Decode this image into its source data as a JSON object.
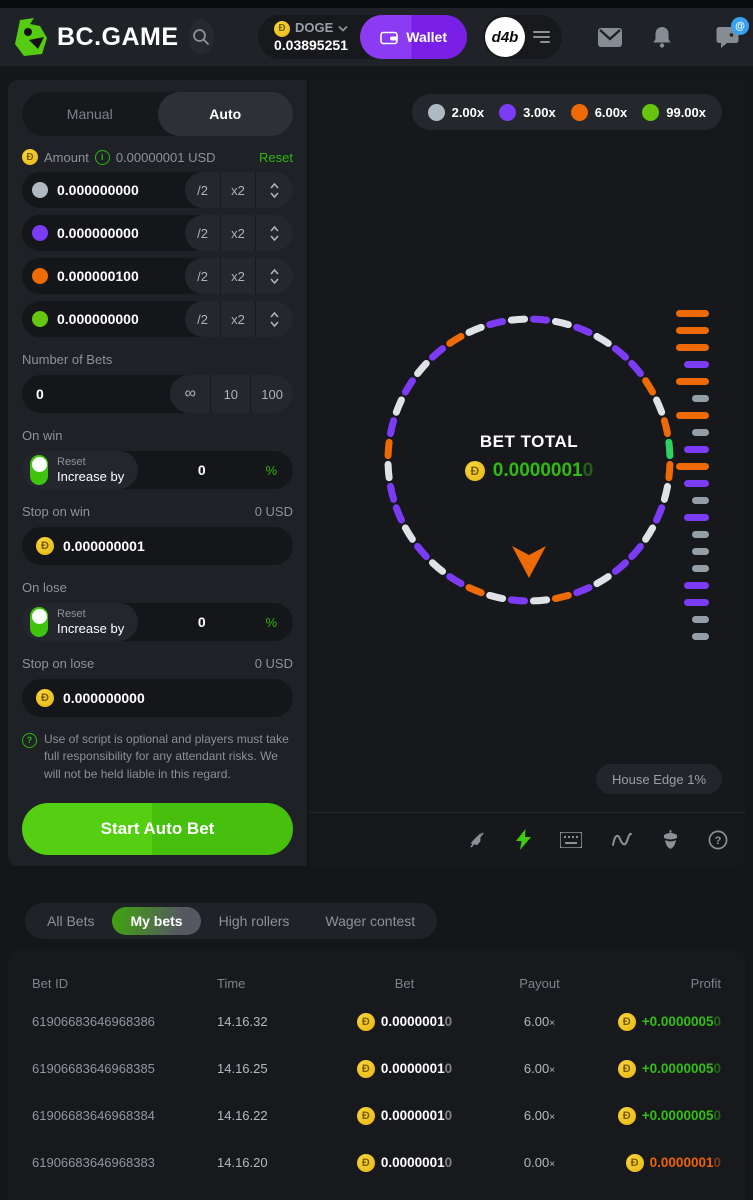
{
  "header": {
    "brand": "BC.GAME",
    "currency": {
      "code": "DOGE",
      "balance": "0.03895251"
    },
    "wallet_label": "Wallet",
    "avatar_text": "d4b",
    "chat_badge": "@"
  },
  "bet_panel": {
    "tabs": {
      "manual": "Manual",
      "auto": "Auto"
    },
    "amount": {
      "label": "Amount",
      "value": "0.00000001 USD",
      "reset_label": "Reset"
    },
    "controls": {
      "divide": "/2",
      "multiply": "x2"
    },
    "bet_rows": [
      {
        "name": "2x",
        "color": "#aeb9c1",
        "value": "0.000000000"
      },
      {
        "name": "3x",
        "color": "#7c3bf5",
        "value": "0.000000000"
      },
      {
        "name": "6x",
        "color": "#ed6a05",
        "value": "0.000000100"
      },
      {
        "name": "99x",
        "color": "#66c60f",
        "value": "0.000000000"
      }
    ],
    "number_of_bets": {
      "label": "Number of Bets",
      "value": "0",
      "presets": [
        "∞",
        "10",
        "100"
      ]
    },
    "on_win": {
      "label": "On win",
      "toggle_top": "Reset",
      "toggle_bottom": "Increase by",
      "value": "0",
      "unit": "%"
    },
    "stop_on_win": {
      "label": "Stop on win",
      "converted": "0 USD",
      "value": "0.000000001"
    },
    "on_lose": {
      "label": "On lose",
      "toggle_top": "Reset",
      "toggle_bottom": "Increase by",
      "value": "0",
      "unit": "%"
    },
    "stop_on_lose": {
      "label": "Stop on lose",
      "converted": "0 USD",
      "value": "0.000000000"
    },
    "disclaimer": "Use of script is optional and players must take full responsibility for any attendant risks. We will not be held liable in this regard.",
    "start_button_label": "Start Auto Bet"
  },
  "game": {
    "legend": [
      {
        "label": "2.00x",
        "color": "#aeb9c1"
      },
      {
        "label": "3.00x",
        "color": "#7c3bf5"
      },
      {
        "label": "6.00x",
        "color": "#ed6a05"
      },
      {
        "label": "99.00x",
        "color": "#66c60f"
      }
    ],
    "bet_total": {
      "label": "BET TOTAL",
      "value_main": "0.0000001",
      "value_dim": "0"
    },
    "house_edge_label": "House Edge 1%",
    "accent_colors": {
      "green": "#31b50f",
      "purple": "#7a1fe6",
      "orange": "#ed6a05",
      "coin_yellow": "#f2c21c"
    },
    "wheel_segments": [
      "#7c3bf5",
      "#dfe3e7",
      "#7c3bf5",
      "#dfe3e7",
      "#7c3bf5",
      "#7c3bf5",
      "#ed6a05",
      "#dfe3e7",
      "#ed6a05",
      "#2fd163",
      "#ed6a05",
      "#dfe3e7",
      "#7c3bf5",
      "#dfe3e7",
      "#7c3bf5",
      "#7c3bf5",
      "#dfe3e7",
      "#7c3bf5",
      "#ed6a05",
      "#dfe3e7",
      "#7c3bf5",
      "#dfe3e7",
      "#ed6a05",
      "#7c3bf5",
      "#dfe3e7",
      "#7c3bf5",
      "#dfe3e7",
      "#7c3bf5",
      "#7c3bf5",
      "#dfe3e7",
      "#ed6a05",
      "#7c3bf5",
      "#dfe3e7",
      "#7c3bf5",
      "#dfe3e7",
      "#7c3bf5",
      "#ed6a05",
      "#dfe3e7",
      "#7c3bf5",
      "#dfe3e7"
    ],
    "history": [
      "orange",
      "orange",
      "orange",
      "purple",
      "orange",
      "gray",
      "orange",
      "gray",
      "purple",
      "orange",
      "purple",
      "gray",
      "purple",
      "gray",
      "gray",
      "gray",
      "purple",
      "purple",
      "gray",
      "gray"
    ],
    "history_styles": {
      "orange": {
        "color": "#ed6a05",
        "width": 33
      },
      "purple": {
        "color": "#7c3bf5",
        "width": 25
      },
      "gray": {
        "color": "#939ea7",
        "width": 17
      }
    }
  },
  "bets_nav": {
    "tabs": [
      "All Bets",
      "My bets",
      "High rollers",
      "Wager contest"
    ],
    "active": "My bets"
  },
  "table": {
    "headers": [
      "Bet ID",
      "Time",
      "Bet",
      "Payout",
      "Profit"
    ],
    "rows": [
      {
        "id": "61906683646968386",
        "time": "14.16.32",
        "bet_main": "0.0000001",
        "bet_dim": "0",
        "payout": "6.00",
        "payout_x": "×",
        "profit_main": "+0.0000005",
        "profit_dim": "0",
        "profit_color": "#33bf12"
      },
      {
        "id": "61906683646968385",
        "time": "14.16.25",
        "bet_main": "0.0000001",
        "bet_dim": "0",
        "payout": "6.00",
        "payout_x": "×",
        "profit_main": "+0.0000005",
        "profit_dim": "0",
        "profit_color": "#33bf12"
      },
      {
        "id": "61906683646968384",
        "time": "14.16.22",
        "bet_main": "0.0000001",
        "bet_dim": "0",
        "payout": "6.00",
        "payout_x": "×",
        "profit_main": "+0.0000005",
        "profit_dim": "0",
        "profit_color": "#33bf12"
      },
      {
        "id": "61906683646968383",
        "time": "14.16.20",
        "bet_main": "0.0000001",
        "bet_dim": "0",
        "payout": "0.00",
        "payout_x": "×",
        "profit_main": "0.0000001",
        "profit_dim": "0",
        "profit_color": "#ed6302"
      }
    ]
  }
}
